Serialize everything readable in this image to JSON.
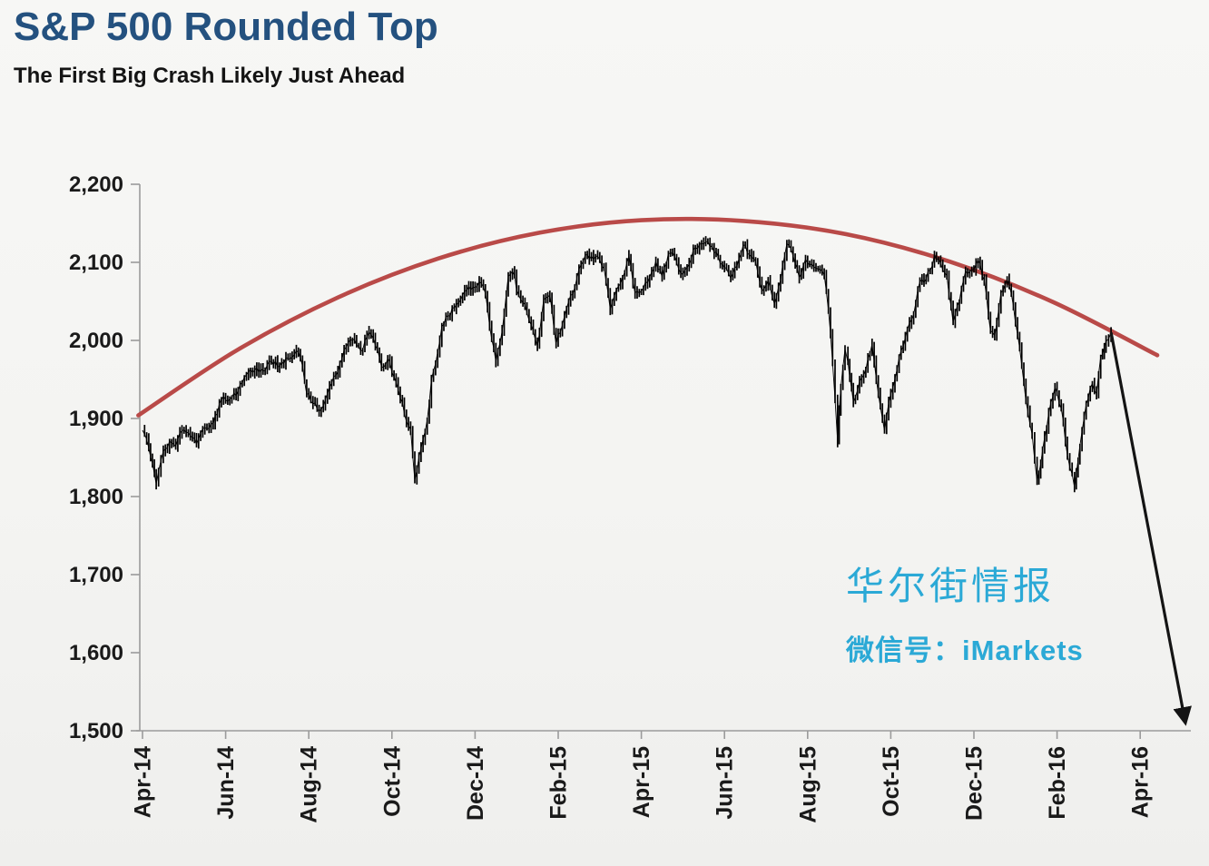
{
  "header": {
    "title": "S&P 500 Rounded Top",
    "subtitle": "The First Big Crash Likely Just Ahead",
    "title_color": "#24517F"
  },
  "watermark": {
    "line1": "华尔街情报",
    "line2": "微信号：iMarkets",
    "color": "#2BA9D6"
  },
  "chart_data": {
    "type": "line",
    "title": "S&P 500 Rounded Top",
    "xlabel": "",
    "ylabel": "",
    "x_unit": "months since Apr-2014",
    "ylim": [
      1500,
      2200
    ],
    "grid": false,
    "legend": "none",
    "axis_color": "#9b9b9b",
    "y_ticks": [
      {
        "label": "2,200",
        "value": 2200
      },
      {
        "label": "2,100",
        "value": 2100
      },
      {
        "label": "2,000",
        "value": 2000
      },
      {
        "label": "1,900",
        "value": 1900
      },
      {
        "label": "1,800",
        "value": 1800
      },
      {
        "label": "1,700",
        "value": 1700
      },
      {
        "label": "1,600",
        "value": 1600
      },
      {
        "label": "1,500",
        "value": 1500
      }
    ],
    "x_ticks": [
      {
        "label": "Apr-14",
        "t": 0
      },
      {
        "label": "Jun-14",
        "t": 2
      },
      {
        "label": "Aug-14",
        "t": 4
      },
      {
        "label": "Oct-14",
        "t": 6
      },
      {
        "label": "Dec-14",
        "t": 8
      },
      {
        "label": "Feb-15",
        "t": 10
      },
      {
        "label": "Apr-15",
        "t": 12
      },
      {
        "label": "Jun-15",
        "t": 14
      },
      {
        "label": "Aug-15",
        "t": 16
      },
      {
        "label": "Oct-15",
        "t": 18
      },
      {
        "label": "Dec-15",
        "t": 20
      },
      {
        "label": "Feb-16",
        "t": 22
      },
      {
        "label": "Apr-16",
        "t": 24
      }
    ],
    "series": [
      {
        "name": "S&P 500 daily price",
        "style": "hl-bars",
        "color": "#000000",
        "points": [
          [
            0.0,
            1885
          ],
          [
            0.15,
            1862
          ],
          [
            0.33,
            1816
          ],
          [
            0.5,
            1858
          ],
          [
            0.65,
            1871
          ],
          [
            0.8,
            1864
          ],
          [
            0.95,
            1884
          ],
          [
            1.15,
            1878
          ],
          [
            1.3,
            1867
          ],
          [
            1.5,
            1888
          ],
          [
            1.7,
            1893
          ],
          [
            1.9,
            1924
          ],
          [
            2.1,
            1925
          ],
          [
            2.3,
            1936
          ],
          [
            2.5,
            1956
          ],
          [
            2.7,
            1962
          ],
          [
            2.9,
            1961
          ],
          [
            3.1,
            1973
          ],
          [
            3.3,
            1967
          ],
          [
            3.5,
            1977
          ],
          [
            3.7,
            1987
          ],
          [
            3.85,
            1967
          ],
          [
            3.95,
            1931
          ],
          [
            4.15,
            1920
          ],
          [
            4.25,
            1909
          ],
          [
            4.45,
            1932
          ],
          [
            4.65,
            1955
          ],
          [
            4.85,
            1988
          ],
          [
            4.95,
            1997
          ],
          [
            5.1,
            2002
          ],
          [
            5.25,
            1986
          ],
          [
            5.45,
            2011
          ],
          [
            5.6,
            1994
          ],
          [
            5.75,
            1966
          ],
          [
            5.9,
            1977
          ],
          [
            6.1,
            1946
          ],
          [
            6.3,
            1906
          ],
          [
            6.45,
            1886
          ],
          [
            6.55,
            1821
          ],
          [
            6.7,
            1862
          ],
          [
            6.85,
            1898
          ],
          [
            6.95,
            1950
          ],
          [
            7.1,
            1985
          ],
          [
            7.2,
            2018
          ],
          [
            7.35,
            2032
          ],
          [
            7.5,
            2041
          ],
          [
            7.65,
            2052
          ],
          [
            7.8,
            2064
          ],
          [
            7.95,
            2068
          ],
          [
            8.1,
            2075
          ],
          [
            8.25,
            2060
          ],
          [
            8.4,
            2002
          ],
          [
            8.5,
            1973
          ],
          [
            8.65,
            2012
          ],
          [
            8.8,
            2082
          ],
          [
            8.9,
            2089
          ],
          [
            9.05,
            2058
          ],
          [
            9.2,
            2046
          ],
          [
            9.35,
            2020
          ],
          [
            9.5,
            1993
          ],
          [
            9.65,
            2052
          ],
          [
            9.8,
            2058
          ],
          [
            9.95,
            1995
          ],
          [
            10.1,
            2020
          ],
          [
            10.25,
            2050
          ],
          [
            10.4,
            2068
          ],
          [
            10.55,
            2097
          ],
          [
            10.7,
            2110
          ],
          [
            10.85,
            2104
          ],
          [
            10.95,
            2108
          ],
          [
            11.1,
            2092
          ],
          [
            11.25,
            2040
          ],
          [
            11.4,
            2065
          ],
          [
            11.55,
            2081
          ],
          [
            11.7,
            2108
          ],
          [
            11.85,
            2061
          ],
          [
            12.05,
            2067
          ],
          [
            12.2,
            2081
          ],
          [
            12.35,
            2102
          ],
          [
            12.5,
            2081
          ],
          [
            12.65,
            2112
          ],
          [
            12.8,
            2108
          ],
          [
            12.95,
            2086
          ],
          [
            13.1,
            2093
          ],
          [
            13.25,
            2116
          ],
          [
            13.4,
            2123
          ],
          [
            13.55,
            2126
          ],
          [
            13.7,
            2121
          ],
          [
            13.85,
            2107
          ],
          [
            14.0,
            2093
          ],
          [
            14.15,
            2080
          ],
          [
            14.3,
            2095
          ],
          [
            14.45,
            2122
          ],
          [
            14.6,
            2110
          ],
          [
            14.75,
            2102
          ],
          [
            14.9,
            2063
          ],
          [
            15.05,
            2077
          ],
          [
            15.2,
            2047
          ],
          [
            15.35,
            2077
          ],
          [
            15.5,
            2124
          ],
          [
            15.65,
            2108
          ],
          [
            15.8,
            2080
          ],
          [
            15.95,
            2104
          ],
          [
            16.1,
            2098
          ],
          [
            16.25,
            2091
          ],
          [
            16.4,
            2084
          ],
          [
            16.5,
            2039
          ],
          [
            16.6,
            1971
          ],
          [
            16.72,
            1871
          ],
          [
            16.8,
            1940
          ],
          [
            16.9,
            1989
          ],
          [
            16.97,
            1972
          ],
          [
            17.1,
            1921
          ],
          [
            17.25,
            1948
          ],
          [
            17.4,
            1962
          ],
          [
            17.55,
            1995
          ],
          [
            17.7,
            1932
          ],
          [
            17.85,
            1884
          ],
          [
            17.95,
            1920
          ],
          [
            18.1,
            1951
          ],
          [
            18.25,
            1987
          ],
          [
            18.4,
            2014
          ],
          [
            18.55,
            2033
          ],
          [
            18.7,
            2075
          ],
          [
            18.85,
            2079
          ],
          [
            18.95,
            2090
          ],
          [
            19.05,
            2110
          ],
          [
            19.2,
            2099
          ],
          [
            19.35,
            2083
          ],
          [
            19.5,
            2023
          ],
          [
            19.65,
            2050
          ],
          [
            19.8,
            2089
          ],
          [
            19.95,
            2090
          ],
          [
            20.1,
            2103
          ],
          [
            20.25,
            2077
          ],
          [
            20.4,
            2012
          ],
          [
            20.5,
            2006
          ],
          [
            20.65,
            2061
          ],
          [
            20.8,
            2078
          ],
          [
            20.95,
            2044
          ],
          [
            21.1,
            1990
          ],
          [
            21.25,
            1922
          ],
          [
            21.4,
            1880
          ],
          [
            21.52,
            1820
          ],
          [
            21.65,
            1859
          ],
          [
            21.8,
            1907
          ],
          [
            21.95,
            1940
          ],
          [
            22.1,
            1913
          ],
          [
            22.25,
            1853
          ],
          [
            22.42,
            1812
          ],
          [
            22.55,
            1865
          ],
          [
            22.7,
            1918
          ],
          [
            22.85,
            1945
          ],
          [
            22.95,
            1932
          ],
          [
            23.05,
            1979
          ],
          [
            23.18,
            1999
          ],
          [
            23.3,
            2010
          ]
        ]
      },
      {
        "name": "Rounded top arc",
        "style": "smooth",
        "color": "#B94A48",
        "points": [
          [
            -0.1,
            1904
          ],
          [
            2.29,
            1988
          ],
          [
            4.7,
            2055
          ],
          [
            7.12,
            2105
          ],
          [
            9.56,
            2138
          ],
          [
            12.0,
            2154
          ],
          [
            14.46,
            2153
          ],
          [
            16.93,
            2136
          ],
          [
            19.41,
            2101
          ],
          [
            21.91,
            2049
          ],
          [
            24.41,
            1981
          ]
        ]
      }
    ],
    "projection_arrow": {
      "name": "crash projection",
      "from": [
        23.3,
        2010
      ],
      "to": [
        25.08,
        1512
      ],
      "color": "#141414"
    }
  }
}
